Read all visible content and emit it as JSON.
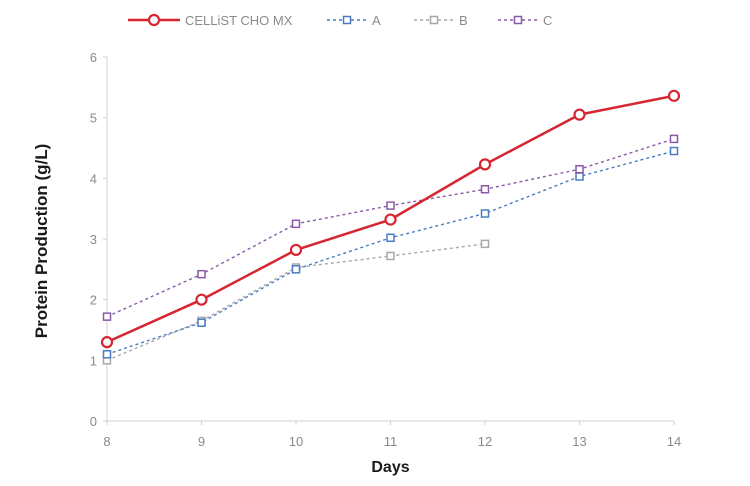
{
  "chart_data": {
    "type": "line",
    "title": "",
    "xlabel": "Days",
    "ylabel": "Protein Production (g/L)",
    "x": [
      8,
      9,
      10,
      11,
      12,
      13,
      14
    ],
    "xlim": [
      8,
      14
    ],
    "ylim": [
      0,
      6
    ],
    "yticks": [
      0,
      1,
      2,
      3,
      4,
      5,
      6
    ],
    "grid": false,
    "legend_position": "top",
    "series": [
      {
        "name": "CELLiST CHO MX",
        "color": "#d62631",
        "line_style": "solid",
        "marker": "circle",
        "x": [
          8,
          9,
          10,
          11,
          12,
          13,
          14
        ],
        "values": [
          1.3,
          2.0,
          2.82,
          3.32,
          4.23,
          5.05,
          5.36
        ]
      },
      {
        "name": "A",
        "color": "#4a7cc2",
        "line_style": "dotted",
        "marker": "square",
        "x": [
          8,
          9,
          10,
          11,
          12,
          13,
          14
        ],
        "values": [
          1.1,
          1.62,
          2.5,
          3.02,
          3.42,
          4.03,
          4.45
        ]
      },
      {
        "name": "B",
        "color": "#a8a8a8",
        "line_style": "dotted",
        "marker": "square",
        "x": [
          8,
          9,
          10,
          11,
          12
        ],
        "values": [
          1.0,
          1.65,
          2.53,
          2.72,
          2.92
        ]
      },
      {
        "name": "C",
        "color": "#8a5aa8",
        "line_style": "dotted",
        "marker": "square",
        "x": [
          8,
          9,
          10,
          11,
          12,
          13,
          14
        ],
        "values": [
          1.72,
          2.42,
          3.25,
          3.55,
          3.82,
          4.15,
          4.65
        ]
      }
    ]
  }
}
